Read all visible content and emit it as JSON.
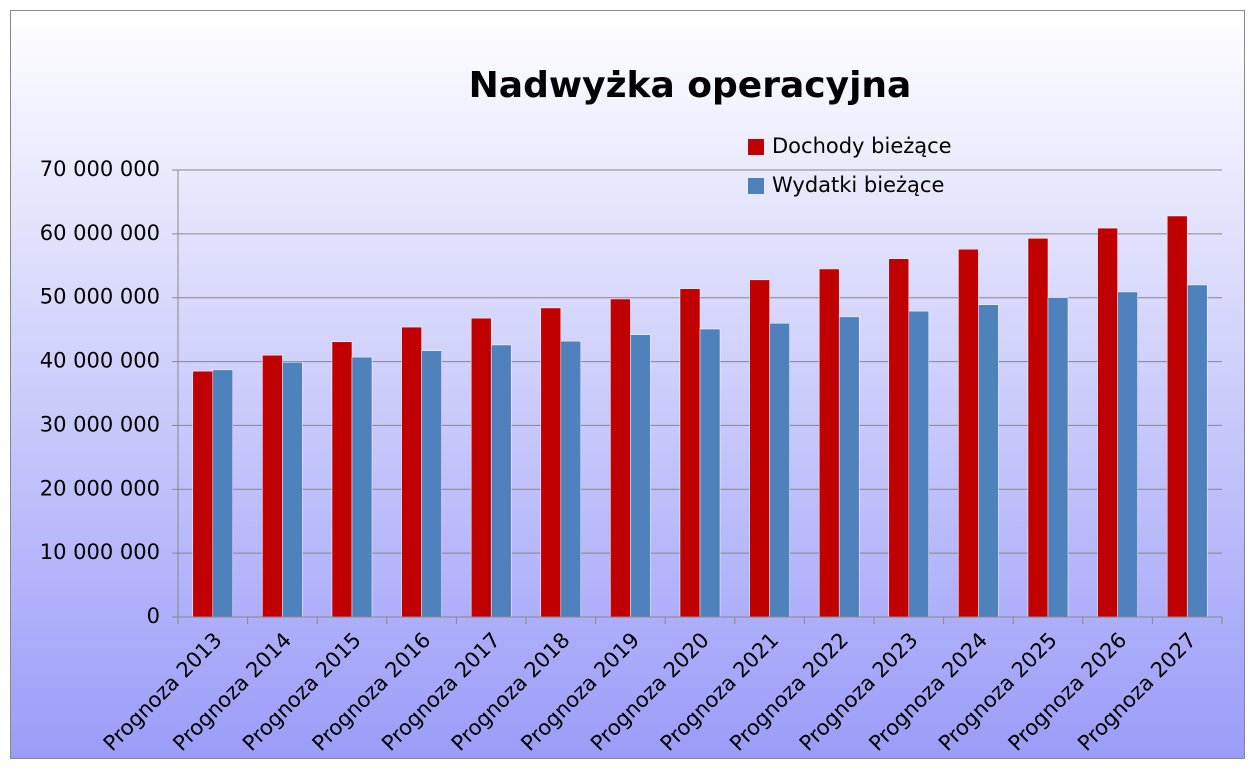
{
  "chart_data": {
    "type": "bar",
    "title": "Nadwyżka operacyjna",
    "categories": [
      "Prognoza 2013",
      "Prognoza 2014",
      "Prognoza 2015",
      "Prognoza 2016",
      "Prognoza 2017",
      "Prognoza 2018",
      "Prognoza 2019",
      "Prognoza 2020",
      "Prognoza 2021",
      "Prognoza 2022",
      "Prognoza 2023",
      "Prognoza 2024",
      "Prognoza 2025",
      "Prognoza 2026",
      "Prognoza 2027"
    ],
    "series": [
      {
        "name": "Dochody bieżące",
        "color": "#c00000",
        "values": [
          38500000,
          41000000,
          43100000,
          45400000,
          46800000,
          48400000,
          49800000,
          51400000,
          52800000,
          54500000,
          56100000,
          57600000,
          59300000,
          60900000,
          62800000
        ]
      },
      {
        "name": "Wydatki bieżące",
        "color": "#4f81bd",
        "values": [
          38700000,
          39900000,
          40700000,
          41700000,
          42600000,
          43200000,
          44200000,
          45100000,
          46000000,
          47000000,
          47900000,
          48900000,
          50000000,
          50900000,
          52000000
        ]
      }
    ],
    "ylim": [
      0,
      70000000
    ],
    "yticks": [
      0,
      {
        "value": 10000000,
        "label": "10 000 000"
      },
      {
        "value": 20000000,
        "label": "20 000 000"
      },
      {
        "value": 30000000,
        "label": "30 000 000"
      },
      {
        "value": 40000000,
        "label": "40 000 000"
      },
      {
        "value": 50000000,
        "label": "50 000 000"
      },
      {
        "value": 60000000,
        "label": "60 000 000"
      },
      {
        "value": 70000000,
        "label": "70 000 000"
      }
    ],
    "grid": true,
    "legend": "top-right"
  }
}
